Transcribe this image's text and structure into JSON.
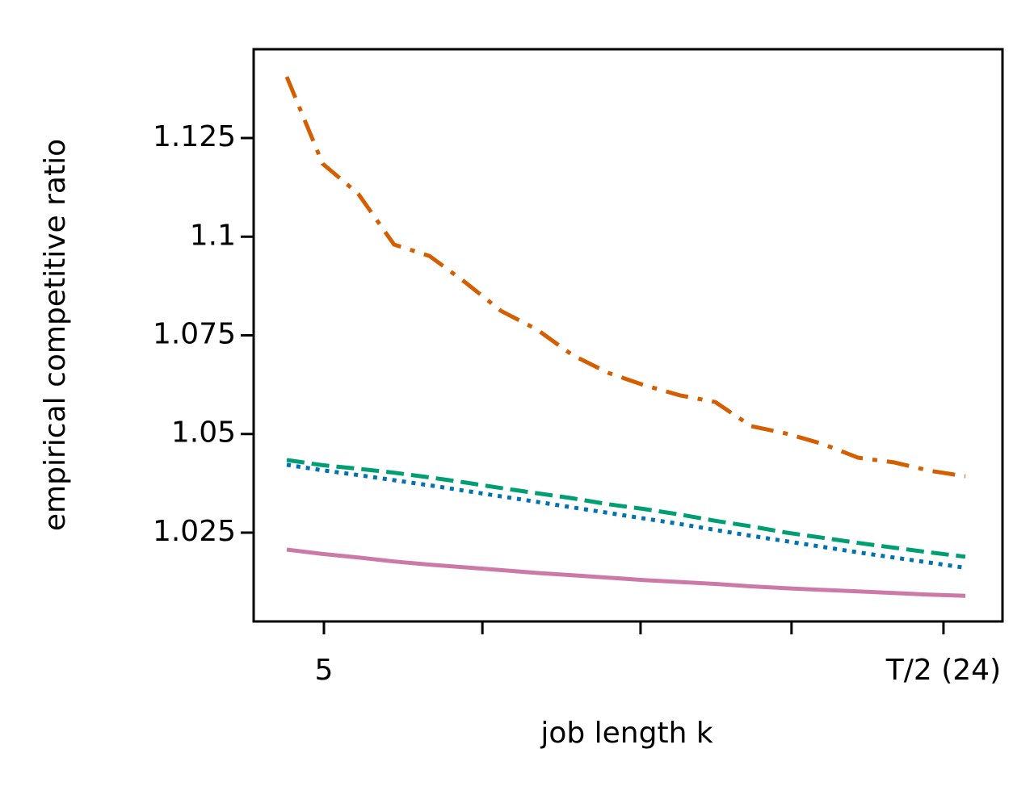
{
  "chart_data": {
    "type": "line",
    "xlabel": "job length k",
    "ylabel": "empirical competitive ratio",
    "x": [
      3.86,
      4.96,
      6.05,
      7.15,
      8.24,
      9.34,
      10.43,
      11.53,
      12.62,
      13.72,
      14.81,
      15.91,
      17.0,
      18.1,
      19.19,
      20.29,
      21.38,
      22.48,
      23.57,
      24.67
    ],
    "series": [
      {
        "color": "#d55e00",
        "dash": "dashdot",
        "values": [
          1.1405,
          1.1185,
          1.1109,
          1.098,
          1.0951,
          1.0884,
          1.0812,
          1.0765,
          1.07,
          1.0655,
          1.0624,
          1.0598,
          1.0581,
          1.052,
          1.0501,
          1.0475,
          1.044,
          1.0428,
          1.0407,
          1.0393
        ]
      },
      {
        "color": "#009e73",
        "dash": "dashed",
        "values": [
          1.0434,
          1.0421,
          1.0412,
          1.0402,
          1.039,
          1.0377,
          1.0363,
          1.035,
          1.0337,
          1.0322,
          1.031,
          1.0296,
          1.028,
          1.0266,
          1.025,
          1.0237,
          1.0224,
          1.0212,
          1.02,
          1.0189
        ]
      },
      {
        "color": "#0072b2",
        "dash": "dotted",
        "values": [
          1.0422,
          1.0408,
          1.0396,
          1.0383,
          1.037,
          1.0356,
          1.0342,
          1.0328,
          1.0314,
          1.03,
          1.0286,
          1.0272,
          1.0257,
          1.0242,
          1.0228,
          1.0214,
          1.02,
          1.0187,
          1.0174,
          1.0161
        ]
      },
      {
        "color": "#cc79a7",
        "dash": "solid",
        "values": [
          1.0207,
          1.0196,
          1.0187,
          1.0177,
          1.0169,
          1.0162,
          1.0155,
          1.0148,
          1.0142,
          1.0136,
          1.013,
          1.0125,
          1.012,
          1.0114,
          1.0109,
          1.0105,
          1.0101,
          1.0097,
          1.0093,
          1.009
        ]
      }
    ],
    "xlim": [
      2.845,
      25.81
    ],
    "ylim": [
      1.0025,
      1.1475
    ],
    "xticks": [
      5,
      {
        "value": 9.86,
        "label": null
      },
      {
        "value": 14.71,
        "label": null
      },
      {
        "value": 19.34,
        "label": null
      },
      {
        "value": 24,
        "label": "T/2 (24)"
      }
    ],
    "yticks": [
      1.025,
      1.05,
      1.075,
      1.1,
      1.125
    ],
    "grid": false
  }
}
